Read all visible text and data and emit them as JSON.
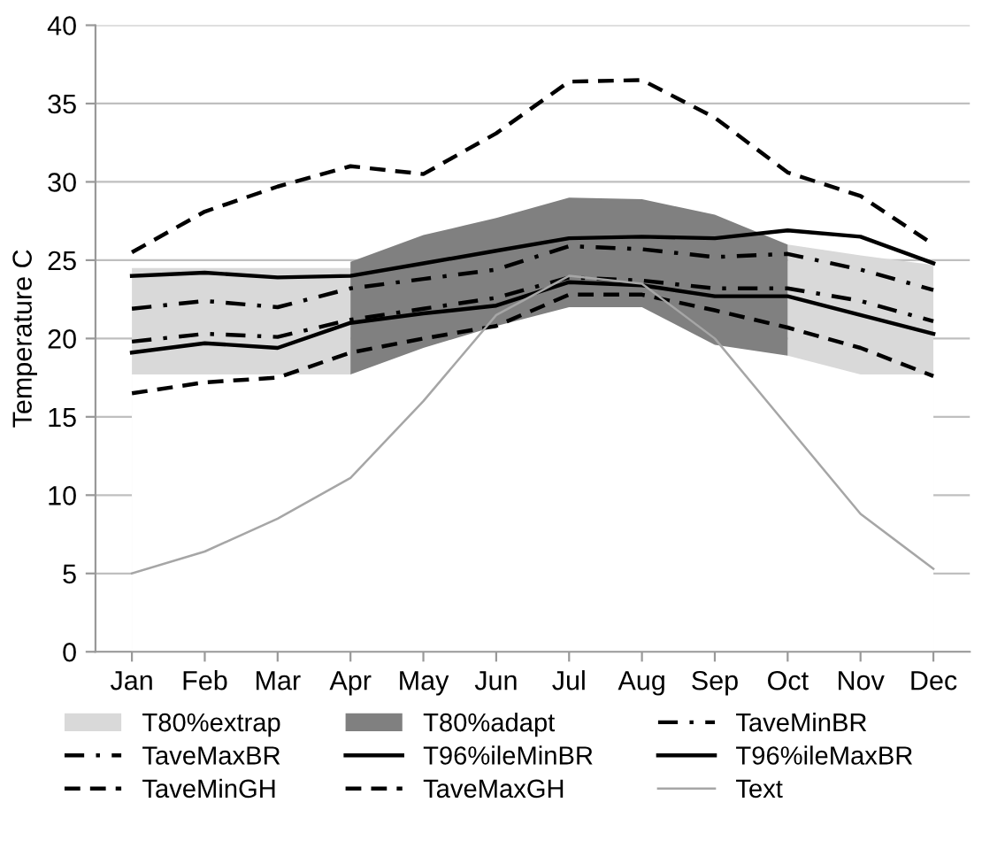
{
  "chart_data": {
    "type": "line",
    "ylabel": "Temperature C",
    "categories": [
      "Jan",
      "Feb",
      "Mar",
      "Apr",
      "May",
      "Jun",
      "Jul",
      "Aug",
      "Sep",
      "Oct",
      "Nov",
      "Dec"
    ],
    "ylim": [
      0,
      40
    ],
    "yticks": [
      0,
      5,
      10,
      15,
      20,
      25,
      30,
      35,
      40
    ],
    "grid": "y",
    "legend": "bottom",
    "series": [
      {
        "name": "T80%extrap",
        "type": "area",
        "color": "#d9d9d9",
        "values": [
          24.5,
          24.5,
          24.5,
          24.5,
          null,
          null,
          null,
          null,
          null,
          26.0,
          25.3,
          24.7
        ]
      },
      {
        "name": "T80%adapt",
        "type": "area",
        "color": "#808080",
        "values": [
          null,
          null,
          null,
          24.9,
          26.6,
          27.7,
          29.0,
          28.9,
          27.9,
          26.0,
          null,
          null
        ]
      },
      {
        "type": "area",
        "color": "#ffffff",
        "values": [
          17.7,
          17.7,
          17.7,
          17.7,
          19.4,
          20.8,
          22.0,
          22.0,
          19.6,
          18.9,
          17.7,
          17.7
        ]
      },
      {
        "name": "TaveMinBR",
        "color": "#000000",
        "line_style": "dashdot",
        "values": [
          19.8,
          20.3,
          20.1,
          21.2,
          21.9,
          22.6,
          23.9,
          23.7,
          23.2,
          23.2,
          22.4,
          21.1
        ]
      },
      {
        "name": "TaveMaxBR",
        "color": "#000000",
        "line_style": "dashdot",
        "values": [
          21.9,
          22.4,
          22.0,
          23.2,
          23.8,
          24.4,
          25.9,
          25.7,
          25.2,
          25.4,
          24.4,
          23.1
        ]
      },
      {
        "name": "T96%ileMinBR",
        "color": "#000000",
        "line_style": "solid",
        "values": [
          19.1,
          19.7,
          19.4,
          21.0,
          21.6,
          22.1,
          23.6,
          23.4,
          22.7,
          22.7,
          21.5,
          20.3
        ]
      },
      {
        "name": "T96%ileMaxBR",
        "color": "#000000",
        "line_style": "solid",
        "values": [
          24.0,
          24.2,
          23.9,
          24.0,
          24.8,
          25.6,
          26.4,
          26.5,
          26.4,
          26.9,
          26.5,
          24.8
        ]
      },
      {
        "name": "TaveMinGH",
        "color": "#000000",
        "line_style": "dashed",
        "values": [
          16.5,
          17.2,
          17.5,
          19.1,
          20.0,
          20.8,
          22.8,
          22.8,
          21.8,
          20.7,
          19.4,
          17.6
        ]
      },
      {
        "name": "TaveMaxGH",
        "color": "#000000",
        "line_style": "dashed",
        "values": [
          25.5,
          28.1,
          29.7,
          31.0,
          30.5,
          33.1,
          36.4,
          36.5,
          34.1,
          30.6,
          29.1,
          26.0
        ]
      },
      {
        "name": "Text",
        "color": "#a6a6a6",
        "line_style": "solid",
        "values": [
          5.0,
          6.4,
          8.5,
          11.1,
          16.0,
          21.5,
          24.0,
          23.5,
          20.0,
          14.4,
          8.8,
          5.3
        ]
      }
    ]
  }
}
